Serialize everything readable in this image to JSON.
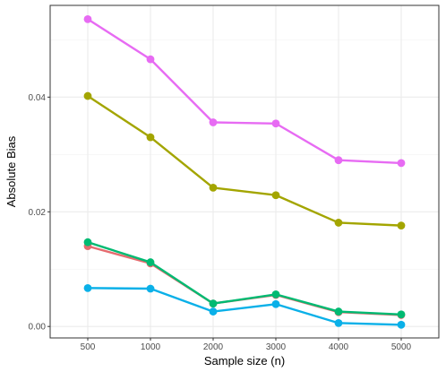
{
  "chart_data": {
    "type": "line",
    "title": "",
    "xlabel": "Sample size (n)",
    "ylabel": "Absolute Bias",
    "categories": [
      "500",
      "1000",
      "2000",
      "3000",
      "4000",
      "5000"
    ],
    "ylim": [
      -0.002,
      0.056
    ],
    "yticks": [
      0.0,
      0.02,
      0.04
    ],
    "ytick_labels": [
      "0.00",
      "0.02",
      "0.04"
    ],
    "grid": true,
    "legend": "none",
    "series": [
      {
        "color": "#e56b6f",
        "values": [
          0.014,
          0.011,
          0.004,
          0.0055,
          0.0025,
          0.002
        ]
      },
      {
        "color": "#a3a500",
        "values": [
          0.0402,
          0.033,
          0.0242,
          0.0229,
          0.0181,
          0.0176
        ]
      },
      {
        "color": "#00ba72",
        "values": [
          0.0147,
          0.0112,
          0.004,
          0.0056,
          0.0026,
          0.0021
        ]
      },
      {
        "color": "#0ab0e8",
        "values": [
          0.0067,
          0.0066,
          0.0026,
          0.0039,
          0.0006,
          0.0003
        ]
      },
      {
        "color": "#e76bf3",
        "values": [
          0.0536,
          0.0466,
          0.0356,
          0.0354,
          0.029,
          0.0285
        ]
      }
    ]
  }
}
